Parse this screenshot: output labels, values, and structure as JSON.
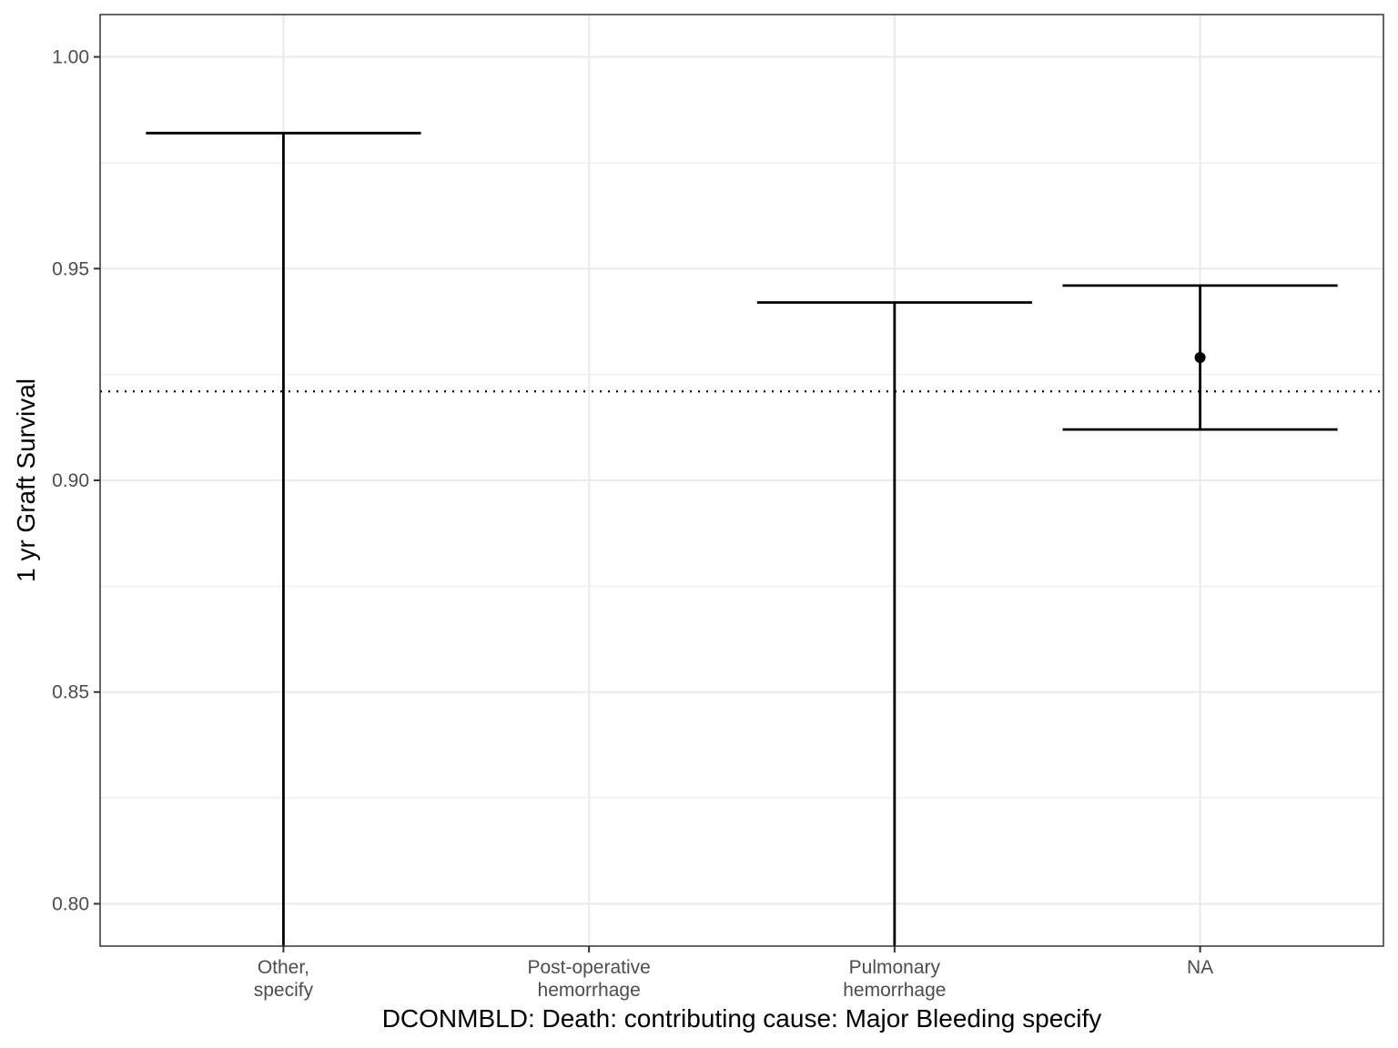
{
  "chart_data": {
    "type": "errorbar",
    "xlabel": "DCONMBLD: Death: contributing cause: Major Bleeding specify",
    "ylabel": "1 yr Graft Survival",
    "ylim": [
      0.79,
      1.01
    ],
    "y_ticks": [
      0.8,
      0.85,
      0.9,
      0.95,
      1.0
    ],
    "y_tick_labels": [
      "0.80",
      "0.85",
      "0.90",
      "0.95",
      "1.00"
    ],
    "categories": [
      {
        "lines": [
          "Other,",
          "specify"
        ]
      },
      {
        "lines": [
          "Post-operative",
          "hemorrhage"
        ]
      },
      {
        "lines": [
          "Pulmonary",
          "hemorrhage"
        ]
      },
      {
        "lines": [
          "NA"
        ]
      }
    ],
    "points": [
      {
        "category_index": 0,
        "estimate": null,
        "lower": 0.7,
        "upper": 0.982
      },
      {
        "category_index": 1,
        "estimate": null,
        "lower": null,
        "upper": null
      },
      {
        "category_index": 2,
        "estimate": null,
        "lower": 0.7,
        "upper": 0.942
      },
      {
        "category_index": 3,
        "estimate": 0.929,
        "lower": 0.912,
        "upper": 0.946
      }
    ],
    "reference_line": {
      "y": 0.921,
      "style": "dotted"
    },
    "grid": true,
    "legend": "none",
    "colors": {
      "mark": "#000000",
      "grid": "#ebebeb",
      "panel_border": "#333333"
    }
  }
}
